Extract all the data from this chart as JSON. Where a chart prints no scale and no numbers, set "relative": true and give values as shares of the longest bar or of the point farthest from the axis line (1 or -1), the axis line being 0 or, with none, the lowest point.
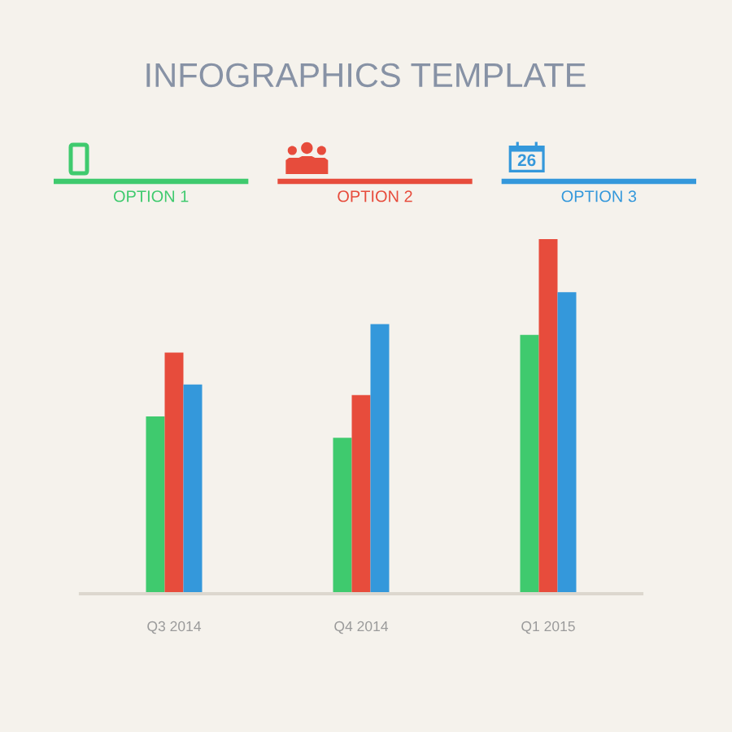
{
  "chart_data": {
    "type": "bar",
    "title": "INFOGRAPHICS TEMPLATE",
    "categories": [
      "Q3 2014",
      "Q4 2014",
      "Q1 2015"
    ],
    "relative": true,
    "legend": "top",
    "series": [
      {
        "name": "OPTION 1",
        "color": "#3fca6e",
        "values": [
          0.5,
          0.44,
          0.73
        ]
      },
      {
        "name": "OPTION 2",
        "color": "#e74c3c",
        "values": [
          0.68,
          0.56,
          1
        ]
      },
      {
        "name": "OPTION 3",
        "color": "#3498db",
        "values": [
          0.59,
          0.76,
          0.85
        ]
      }
    ],
    "annotations": [
      "26"
    ]
  }
}
